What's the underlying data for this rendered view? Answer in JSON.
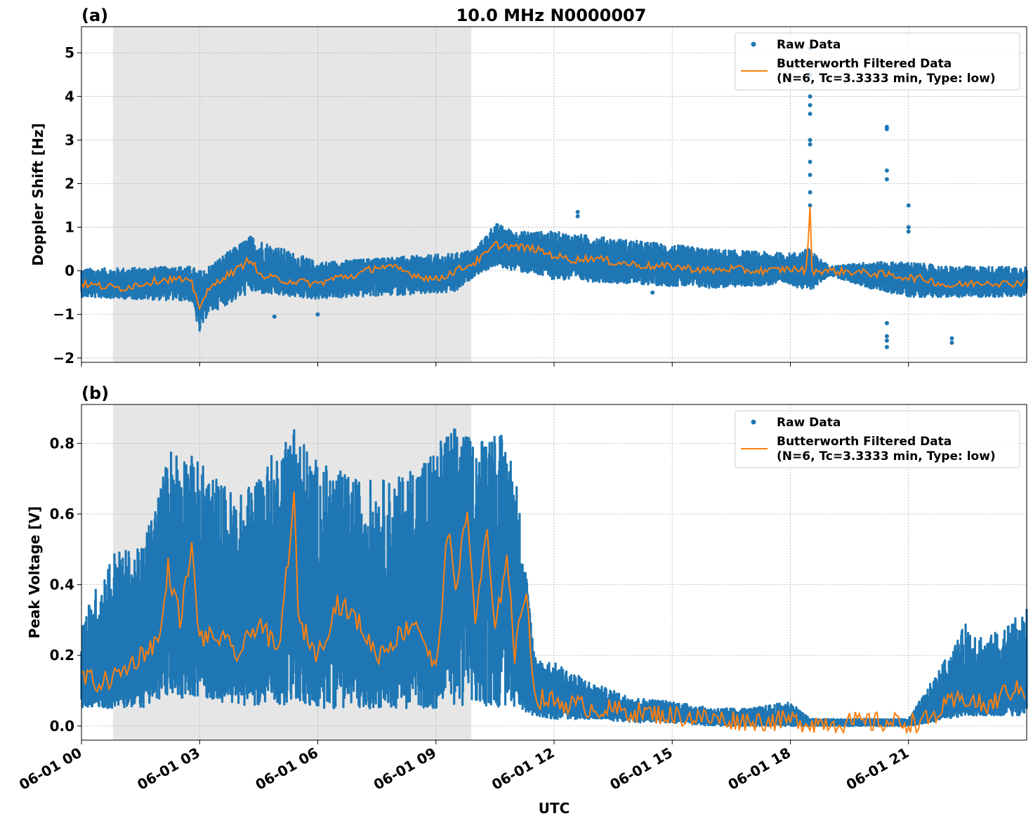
{
  "figure": {
    "title": "10.0 MHz N0000007",
    "xlabel": "UTC"
  },
  "colors": {
    "raw": "#1f77b4",
    "filtered": "#ff7f0e",
    "shade": "#e6e6e6",
    "grid": "#b0b0b0"
  },
  "legend": {
    "raw_label": "Raw Data",
    "filtered_line1": "Butterworth Filtered Data",
    "filtered_line2": "(N=6, Tc=3.3333 min, Type: low)"
  },
  "chart_data": [
    {
      "type": "scatter",
      "panel_label": "(a)",
      "title": "10.0 MHz N0000007",
      "ylabel": "Doppler Shift [Hz]",
      "xlabel": "UTC",
      "x_unit": "hours since 06-01 00:00 UTC",
      "xlim": [
        0,
        24
      ],
      "ylim": [
        -2.1,
        5.6
      ],
      "yticks": [
        5,
        4,
        3,
        2,
        1,
        0,
        -1,
        -2
      ],
      "ytick_labels": [
        "5",
        "4",
        "3",
        "2",
        "1",
        "0",
        "−1",
        "−2"
      ],
      "grid": true,
      "legend_position": "top-right",
      "shaded_interval": [
        0.8,
        9.9
      ],
      "series": [
        {
          "name": "Raw Data",
          "style": "dots"
        },
        {
          "name": "Butterworth Filtered Data (N=6, Tc=3.3333 min, Type: low)",
          "style": "line"
        }
      ],
      "filtered_trend": {
        "x": [
          0,
          0.5,
          1.0,
          1.5,
          2.0,
          2.5,
          2.8,
          3.0,
          3.2,
          3.5,
          4.0,
          4.3,
          4.5,
          5.0,
          5.5,
          6.0,
          6.5,
          7.0,
          7.5,
          8.0,
          8.5,
          9.0,
          9.5,
          10.0,
          10.3,
          10.5,
          11.0,
          11.5,
          12.0,
          12.5,
          13.0,
          13.5,
          14.0,
          14.5,
          15.0,
          15.5,
          16.0,
          16.5,
          17.0,
          17.5,
          18.0,
          18.4,
          18.5,
          18.55,
          19.0,
          19.5,
          20.0,
          20.5,
          21.0,
          21.5,
          22.0,
          22.5,
          23.0,
          23.5,
          24.0
        ],
        "y": [
          -0.3,
          -0.35,
          -0.4,
          -0.3,
          -0.2,
          -0.2,
          -0.3,
          -0.8,
          -0.5,
          -0.2,
          0.05,
          0.3,
          -0.1,
          -0.2,
          -0.25,
          -0.3,
          -0.15,
          -0.1,
          0.1,
          0.05,
          -0.1,
          -0.2,
          0.0,
          0.2,
          0.4,
          0.6,
          0.55,
          0.5,
          0.35,
          0.25,
          0.3,
          0.2,
          0.15,
          0.1,
          0.1,
          0.05,
          0.0,
          0.05,
          0.0,
          0.0,
          0.05,
          0.0,
          1.4,
          0.0,
          0.0,
          -0.02,
          -0.05,
          -0.1,
          -0.15,
          -0.2,
          -0.35,
          -0.3,
          -0.25,
          -0.3,
          -0.25
        ]
      },
      "spread": {
        "x": [
          0,
          2.8,
          3.0,
          3.2,
          4.3,
          6.0,
          9.5,
          10.0,
          10.5,
          11.0,
          12.0,
          14.0,
          16.0,
          18.0,
          18.45,
          19.0,
          20.0,
          21.0,
          22.0,
          24.0
        ],
        "hi": [
          0.05,
          0.1,
          0.0,
          0.1,
          0.8,
          0.2,
          0.4,
          0.5,
          1.1,
          0.9,
          0.9,
          0.7,
          0.5,
          0.4,
          0.5,
          0.1,
          0.2,
          0.2,
          0.1,
          0.1
        ],
        "lo": [
          -0.6,
          -0.7,
          -1.45,
          -1.0,
          -0.5,
          -0.65,
          -0.5,
          -0.1,
          0.1,
          0.0,
          -0.2,
          -0.3,
          -0.4,
          -0.3,
          -0.5,
          -0.1,
          -0.4,
          -0.6,
          -0.6,
          -0.6
        ]
      },
      "outliers": [
        {
          "x": 18.5,
          "y": [
            5.1,
            4.8,
            4.5,
            4.0,
            3.8,
            3.6,
            3.0,
            2.9,
            2.5,
            2.2,
            1.8,
            1.5
          ]
        },
        {
          "x": 20.45,
          "y": [
            3.3,
            3.25,
            2.3,
            2.1,
            -1.5,
            -1.6,
            -1.75,
            -1.2
          ]
        },
        {
          "x": 21.0,
          "y": [
            1.5,
            1.0,
            0.9
          ]
        },
        {
          "x": 22.1,
          "y": [
            -1.55,
            -1.65
          ]
        },
        {
          "x": 12.6,
          "y": [
            1.35,
            1.25
          ]
        },
        {
          "x": 4.9,
          "y": [
            -1.05
          ]
        },
        {
          "x": 6.0,
          "y": [
            -1.0
          ]
        },
        {
          "x": 14.5,
          "y": [
            -0.5
          ]
        }
      ]
    },
    {
      "type": "scatter",
      "panel_label": "(b)",
      "ylabel": "Peak Voltage [V]",
      "xlabel": "UTC",
      "x_unit": "hours since 06-01 00:00 UTC",
      "xlim": [
        0,
        24
      ],
      "ylim": [
        -0.04,
        0.91
      ],
      "yticks": [
        0.0,
        0.2,
        0.4,
        0.6,
        0.8
      ],
      "ytick_labels": [
        "0.0",
        "0.2",
        "0.4",
        "0.6",
        "0.8"
      ],
      "xticks": [
        0,
        3,
        6,
        9,
        12,
        15,
        18,
        21
      ],
      "xtick_labels": [
        "06-01 00",
        "06-01 03",
        "06-01 06",
        "06-01 09",
        "06-01 12",
        "06-01 15",
        "06-01 18",
        "06-01 21"
      ],
      "grid": true,
      "legend_position": "top-right",
      "shaded_interval": [
        0.8,
        9.9
      ],
      "series": [
        {
          "name": "Raw Data",
          "style": "dots"
        },
        {
          "name": "Butterworth Filtered Data (N=6, Tc=3.3333 min, Type: low)",
          "style": "line"
        }
      ],
      "filtered_trend": {
        "x": [
          0,
          0.5,
          1.0,
          1.5,
          2.0,
          2.2,
          2.5,
          2.8,
          3.0,
          3.5,
          4.0,
          4.5,
          5.0,
          5.4,
          5.5,
          6.0,
          6.5,
          7.0,
          7.5,
          8.0,
          8.5,
          9.0,
          9.3,
          9.5,
          9.8,
          10.0,
          10.3,
          10.5,
          10.8,
          11.0,
          11.3,
          11.5,
          12.0,
          12.5,
          13.0,
          14.0,
          15.0,
          16.0,
          17.0,
          18.0,
          18.5,
          19.0,
          20.0,
          21.0,
          21.5,
          22.0,
          22.5,
          23.0,
          23.5,
          24.0
        ],
        "y": [
          0.14,
          0.12,
          0.15,
          0.2,
          0.25,
          0.45,
          0.3,
          0.5,
          0.25,
          0.25,
          0.2,
          0.3,
          0.2,
          0.65,
          0.3,
          0.2,
          0.35,
          0.3,
          0.2,
          0.25,
          0.3,
          0.15,
          0.55,
          0.4,
          0.6,
          0.3,
          0.55,
          0.25,
          0.5,
          0.2,
          0.4,
          0.08,
          0.07,
          0.06,
          0.05,
          0.04,
          0.03,
          0.02,
          0.015,
          0.015,
          0.01,
          0.01,
          0.01,
          0.01,
          0.015,
          0.06,
          0.08,
          0.05,
          0.1,
          0.1
        ]
      },
      "spread": {
        "x": [
          0,
          0.8,
          1.5,
          2.3,
          3.0,
          4.0,
          5.4,
          6.0,
          7.0,
          8.0,
          9.0,
          9.5,
          10.0,
          10.5,
          11.0,
          11.5,
          12.0,
          13.0,
          14.0,
          15.0,
          16.0,
          17.0,
          18.0,
          18.5,
          21.0,
          22.0,
          22.5,
          23.0,
          24.0
        ],
        "hi": [
          0.3,
          0.5,
          0.5,
          0.8,
          0.75,
          0.65,
          0.85,
          0.75,
          0.7,
          0.7,
          0.8,
          0.85,
          0.8,
          0.86,
          0.75,
          0.2,
          0.18,
          0.12,
          0.08,
          0.07,
          0.05,
          0.05,
          0.07,
          0.02,
          0.02,
          0.2,
          0.3,
          0.25,
          0.33
        ],
        "lo": [
          0.05,
          0.05,
          0.05,
          0.08,
          0.08,
          0.06,
          0.06,
          0.05,
          0.05,
          0.05,
          0.05,
          0.06,
          0.05,
          0.05,
          0.05,
          0.03,
          0.02,
          0.02,
          0.01,
          0.01,
          0.0,
          0.0,
          0.0,
          0.0,
          0.0,
          0.02,
          0.03,
          0.03,
          0.03
        ]
      }
    }
  ]
}
